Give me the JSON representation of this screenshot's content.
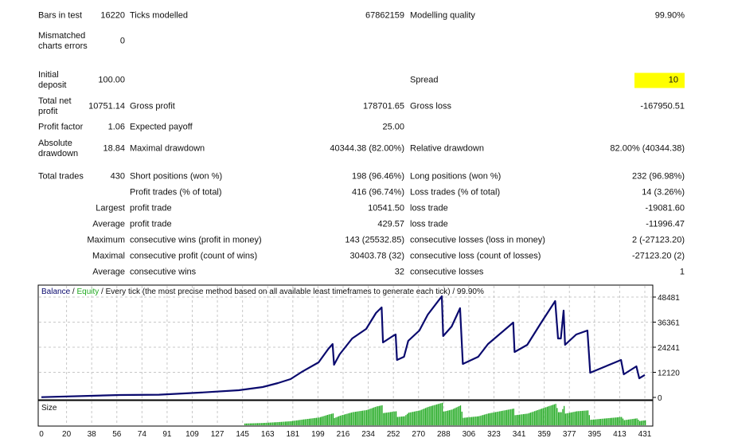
{
  "report": {
    "rows": [
      [
        "Bars in test",
        "16220",
        "Ticks modelled",
        "67862159",
        "Modelling quality",
        "99.90%"
      ],
      [
        "Mismatched charts errors",
        "0",
        "",
        "",
        "",
        ""
      ],
      [
        "Initial deposit",
        "100.00",
        "",
        "",
        "Spread",
        "10"
      ],
      [
        "Total net profit",
        "10751.14",
        "Gross profit",
        "178701.65",
        "Gross loss",
        "-167950.51"
      ],
      [
        "Profit factor",
        "1.06",
        "Expected payoff",
        "25.00",
        "",
        ""
      ],
      [
        "Absolute drawdown",
        "18.84",
        "Maximal drawdown",
        "40344.38 (82.00%)",
        "Relative drawdown",
        "82.00% (40344.38)"
      ],
      [
        "Total trades",
        "430",
        "Short positions (won %)",
        "198 (96.46%)",
        "Long positions (won %)",
        "232 (96.98%)"
      ],
      [
        "",
        "",
        "Profit trades (% of total)",
        "416 (96.74%)",
        "Loss trades (% of total)",
        "14 (3.26%)"
      ],
      [
        "",
        "Largest",
        "profit trade",
        "10541.50",
        "loss trade",
        "-19081.60"
      ],
      [
        "",
        "Average",
        "profit trade",
        "429.57",
        "loss trade",
        "-11996.47"
      ],
      [
        "",
        "Maximum",
        "consecutive wins (profit in money)",
        "143 (25532.85)",
        "consecutive losses (loss in money)",
        "2 (-27123.20)"
      ],
      [
        "",
        "Maximal",
        "consecutive profit (count of wins)",
        "30403.78 (32)",
        "consecutive loss (count of losses)",
        "-27123.20 (2)"
      ],
      [
        "",
        "Average",
        "consecutive wins",
        "32",
        "consecutive losses",
        "1"
      ]
    ],
    "highlight_color": "#ffff00"
  },
  "chart_data": {
    "type": "line",
    "legend": {
      "balance": "Balance",
      "sep1": " / ",
      "equity": "Equity",
      "rest": " / Every tick (the most precise method based on all available least timeframes to generate each tick) / 99.90%"
    },
    "colors": {
      "balance": "#0a0a6e",
      "equity": "#22aa22",
      "size": "#22aa22",
      "grid": "#c8c8c8"
    },
    "ylim": [
      0,
      48481
    ],
    "yticks": [
      "48481",
      "36361",
      "24241",
      "12120",
      "0"
    ],
    "xlim": [
      0,
      431
    ],
    "xticks": [
      "0",
      "20",
      "38",
      "56",
      "74",
      "91",
      "109",
      "127",
      "145",
      "163",
      "181",
      "199",
      "216",
      "234",
      "252",
      "270",
      "288",
      "306",
      "323",
      "341",
      "359",
      "377",
      "395",
      "413",
      "431"
    ],
    "size_label": "Size",
    "balance": [
      [
        0,
        100
      ],
      [
        56,
        1150
      ],
      [
        84,
        1300
      ],
      [
        113,
        2300
      ],
      [
        141,
        3460
      ],
      [
        158,
        5000
      ],
      [
        169,
        6930
      ],
      [
        178,
        8850
      ],
      [
        186,
        12310
      ],
      [
        198,
        16930
      ],
      [
        205,
        23470
      ],
      [
        208,
        25780
      ],
      [
        209,
        15780
      ],
      [
        213,
        20780
      ],
      [
        222,
        28480
      ],
      [
        232,
        33090
      ],
      [
        239,
        40790
      ],
      [
        243,
        43480
      ],
      [
        244,
        26550
      ],
      [
        251,
        29630
      ],
      [
        253,
        30400
      ],
      [
        254,
        18090
      ],
      [
        259,
        19620
      ],
      [
        262,
        27320
      ],
      [
        270,
        32320
      ],
      [
        276,
        40020
      ],
      [
        286,
        48870
      ],
      [
        287,
        29630
      ],
      [
        293,
        34250
      ],
      [
        299,
        43100
      ],
      [
        301,
        16160
      ],
      [
        312,
        19620
      ],
      [
        319,
        25780
      ],
      [
        337,
        36170
      ],
      [
        338,
        21930
      ],
      [
        347,
        25400
      ],
      [
        357,
        36170
      ],
      [
        367,
        46560
      ],
      [
        369,
        28480
      ],
      [
        371,
        28480
      ],
      [
        373,
        41940
      ],
      [
        374,
        25400
      ],
      [
        382,
        30400
      ],
      [
        390,
        32320
      ],
      [
        392,
        11930
      ],
      [
        414,
        18090
      ],
      [
        416,
        11160
      ],
      [
        425,
        15010
      ],
      [
        427,
        9240
      ],
      [
        431,
        10851
      ]
    ]
  }
}
